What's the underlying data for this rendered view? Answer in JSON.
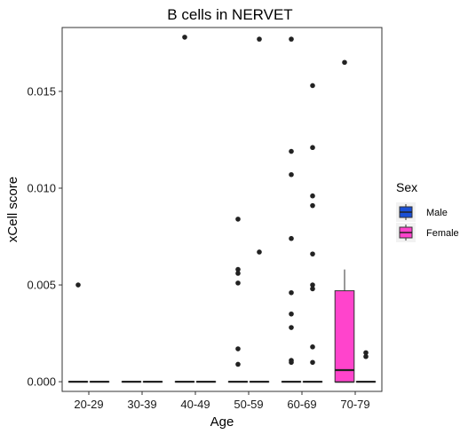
{
  "chart_data": {
    "type": "boxplot",
    "title": "B cells in NERVET",
    "xlabel": "Age",
    "ylabel": "xCell score",
    "categories": [
      "20-29",
      "30-39",
      "40-49",
      "50-59",
      "60-69",
      "70-79"
    ],
    "ylim": [
      -0.0005,
      0.0183
    ],
    "yticks": [
      0.0,
      0.005,
      0.01,
      0.015
    ],
    "ytick_labels": [
      "0.000",
      "0.005",
      "0.010",
      "0.015"
    ],
    "grid": false,
    "legend": {
      "title": "Sex",
      "placement": "right",
      "entries": [
        {
          "name": "Male",
          "color": "#1a4fd6"
        },
        {
          "name": "Female",
          "color": "#ff44cc"
        }
      ]
    },
    "series": [
      {
        "name": "Male",
        "color": "#1a4fd6",
        "boxes": [
          {
            "category": "20-29",
            "q1": 0,
            "median": 0,
            "q3": 0,
            "whisker_low": 0,
            "whisker_high": 0,
            "outliers": [
              0.005
            ]
          },
          {
            "category": "30-39",
            "q1": 0,
            "median": 0,
            "q3": 0,
            "whisker_low": 0,
            "whisker_high": 0,
            "outliers": []
          },
          {
            "category": "40-49",
            "q1": 0,
            "median": 0,
            "q3": 0,
            "whisker_low": 0,
            "whisker_high": 0,
            "outliers": [
              0.0178
            ]
          },
          {
            "category": "50-59",
            "q1": 0,
            "median": 0,
            "q3": 0,
            "whisker_low": 0,
            "whisker_high": 0,
            "outliers": [
              0.0084,
              0.0058,
              0.0056,
              0.0051,
              0.0017,
              0.0009
            ]
          },
          {
            "category": "60-69",
            "q1": 0,
            "median": 0,
            "q3": 0,
            "whisker_low": 0,
            "whisker_high": 0,
            "outliers": [
              0.0177,
              0.0119,
              0.0107,
              0.0074,
              0.0046,
              0.0035,
              0.0028,
              0.0011,
              0.001
            ]
          },
          {
            "category": "70-79",
            "q1": 0,
            "median": 0,
            "q3": 0,
            "whisker_low": 0,
            "whisker_high": 0,
            "outliers": [
              0.0165
            ]
          }
        ]
      },
      {
        "name": "Female",
        "color": "#ff44cc",
        "boxes": [
          {
            "category": "20-29",
            "q1": 0,
            "median": 0,
            "q3": 0,
            "whisker_low": 0,
            "whisker_high": 0,
            "outliers": []
          },
          {
            "category": "30-39",
            "q1": 0,
            "median": 0,
            "q3": 0,
            "whisker_low": 0,
            "whisker_high": 0,
            "outliers": []
          },
          {
            "category": "40-49",
            "q1": 0,
            "median": 0,
            "q3": 0,
            "whisker_low": 0,
            "whisker_high": 0,
            "outliers": []
          },
          {
            "category": "50-59",
            "q1": 0,
            "median": 0,
            "q3": 0,
            "whisker_low": 0,
            "whisker_high": 0,
            "outliers": [
              0.0177,
              0.0067
            ]
          },
          {
            "category": "60-69",
            "q1": 0,
            "median": 0,
            "q3": 0,
            "whisker_low": 0,
            "whisker_high": 0,
            "outliers": [
              0.0153,
              0.0121,
              0.0096,
              0.0091,
              0.0066,
              0.005,
              0.0048,
              0.0018,
              0.001
            ]
          },
          {
            "category": "70-79",
            "q1": 0,
            "median": 0,
            "q3": 0,
            "whisker_low": 0,
            "whisker_high": 0,
            "outliers": [
              0.0015,
              0.0013
            ]
          }
        ]
      },
      {
        "name": "Female-70-79-box",
        "color": "#ff44cc",
        "note_hidden": true,
        "boxes": []
      }
    ],
    "special_boxes": [
      {
        "category": "70-79",
        "sex": "Male",
        "q1": 0.0,
        "median": 0.0006,
        "q3": 0.0047,
        "whisker_low": 0.0,
        "whisker_high": 0.0058,
        "fill": "#ff44cc"
      }
    ]
  }
}
